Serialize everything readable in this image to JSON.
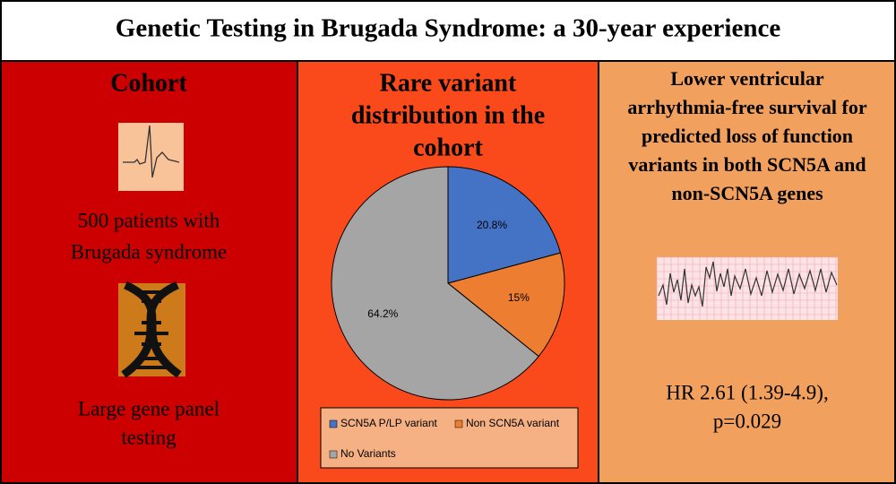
{
  "title": "Genetic Testing in Brugada Syndrome: a 30-year experience",
  "panels": [
    {
      "title_lines": [
        "Cohort"
      ],
      "text_blocks": [
        [
          "500 patients with",
          "Brugada syndrome"
        ],
        [
          "Large gene panel",
          "testing"
        ]
      ]
    },
    {
      "title_lines": [
        "Rare variant",
        "distribution in the",
        "cohort"
      ]
    },
    {
      "title_lines": [
        "Lower ventricular",
        "arrhythmia-free survival for",
        "predicted loss of function",
        "variants in both SCN5A and",
        "non-SCN5A genes"
      ],
      "text_blocks": [
        [
          "HR 2.61 (1.39-4.9),",
          "p=0.029"
        ]
      ]
    }
  ],
  "chart_data": {
    "type": "pie",
    "categories": [
      "SCN5A P/LP variant",
      "Non SCN5A variant",
      "No Variants"
    ],
    "values": [
      20.8,
      15,
      64.2
    ],
    "value_labels": [
      "20.8%",
      "15%",
      "64.2%"
    ],
    "colors": [
      "#4472c4",
      "#ed7d31",
      "#a5a5a5"
    ]
  }
}
